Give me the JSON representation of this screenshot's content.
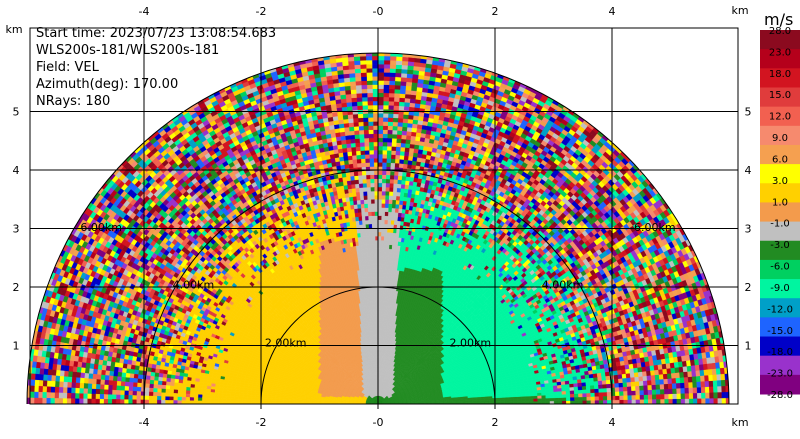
{
  "info": {
    "start_time": "Start time: 2023/07/23 13:08:54.683",
    "instrument": "WLS200s-181/WLS200s-181",
    "field": "Field: VEL",
    "azimuth": "Azimuth(deg): 170.00",
    "nrays": "NRays: 180"
  },
  "colors": {
    "ring": "#000000",
    "grid": "#000000"
  },
  "chart_data": {
    "type": "heatmap",
    "title": "",
    "xlabel": "km",
    "ylabel": "km",
    "xlim": [
      -6.1,
      6.1
    ],
    "ylim": [
      0,
      6.0
    ],
    "x_ticks": [
      -4,
      -2,
      0,
      2,
      4
    ],
    "x_tick_labels": [
      "-4",
      "-2",
      "-0",
      "2",
      "4"
    ],
    "y_ticks": [
      1,
      2,
      3,
      4,
      5
    ],
    "y_tick_labels": [
      "1",
      "2",
      "3",
      "4",
      "5"
    ],
    "x_unit": "km",
    "y_unit": "km",
    "grid": true,
    "max_range_km": 6.0,
    "range_rings_km": [
      2,
      4,
      6
    ],
    "ring_labels": [
      "2.00km",
      "4.00km",
      "6.00km"
    ],
    "colorbar": {
      "unit": "m/s",
      "tick_labels": [
        "28.0",
        "23.0",
        "18.0",
        "15.0",
        "12.0",
        "9.0",
        "6.0",
        "3.0",
        "1.0",
        "-1.0",
        "-3.0",
        "-6.0",
        "-9.0",
        "-12.0",
        "-15.0",
        "-18.0",
        "-23.0",
        "-28.0"
      ],
      "colors": [
        "#8b0a1f",
        "#b5001b",
        "#d21420",
        "#e03c3c",
        "#f26050",
        "#f68a6e",
        "#f5a050",
        "#ffff00",
        "#ffd000",
        "#f39b4c",
        "#c0c0c0",
        "#228b22",
        "#00d060",
        "#00f5a0",
        "#00a0c8",
        "#1e64ff",
        "#0000c8",
        "#9932cc",
        "#800080"
      ]
    }
  }
}
